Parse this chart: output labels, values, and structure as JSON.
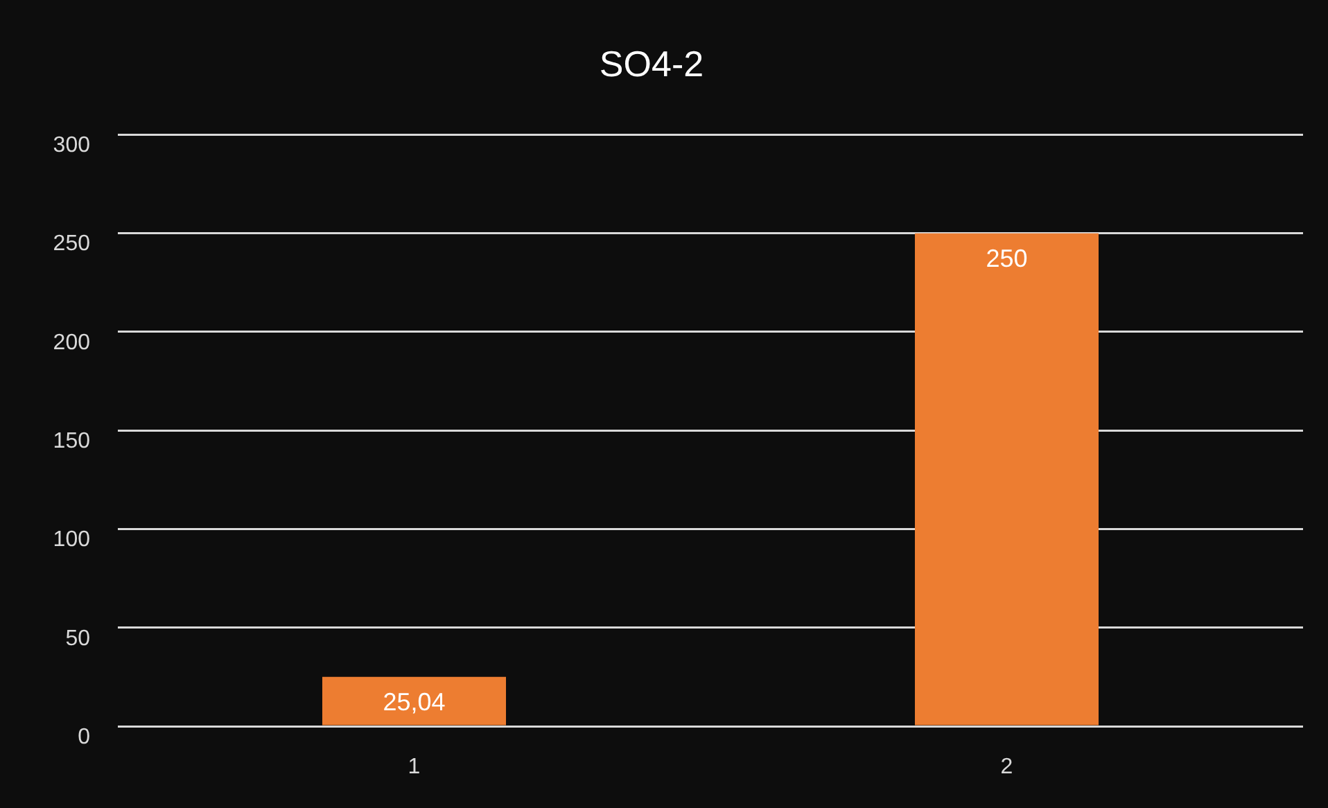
{
  "chart_data": {
    "type": "bar",
    "title": "SO4-2",
    "categories": [
      "1",
      "2"
    ],
    "values": [
      25.04,
      250
    ],
    "color": "#ed7d31",
    "value_labels": [
      "25,04",
      "250"
    ],
    "ylim": [
      0,
      300
    ],
    "yticks": [
      0,
      50,
      100,
      150,
      200,
      250,
      300
    ],
    "grid": "y"
  }
}
